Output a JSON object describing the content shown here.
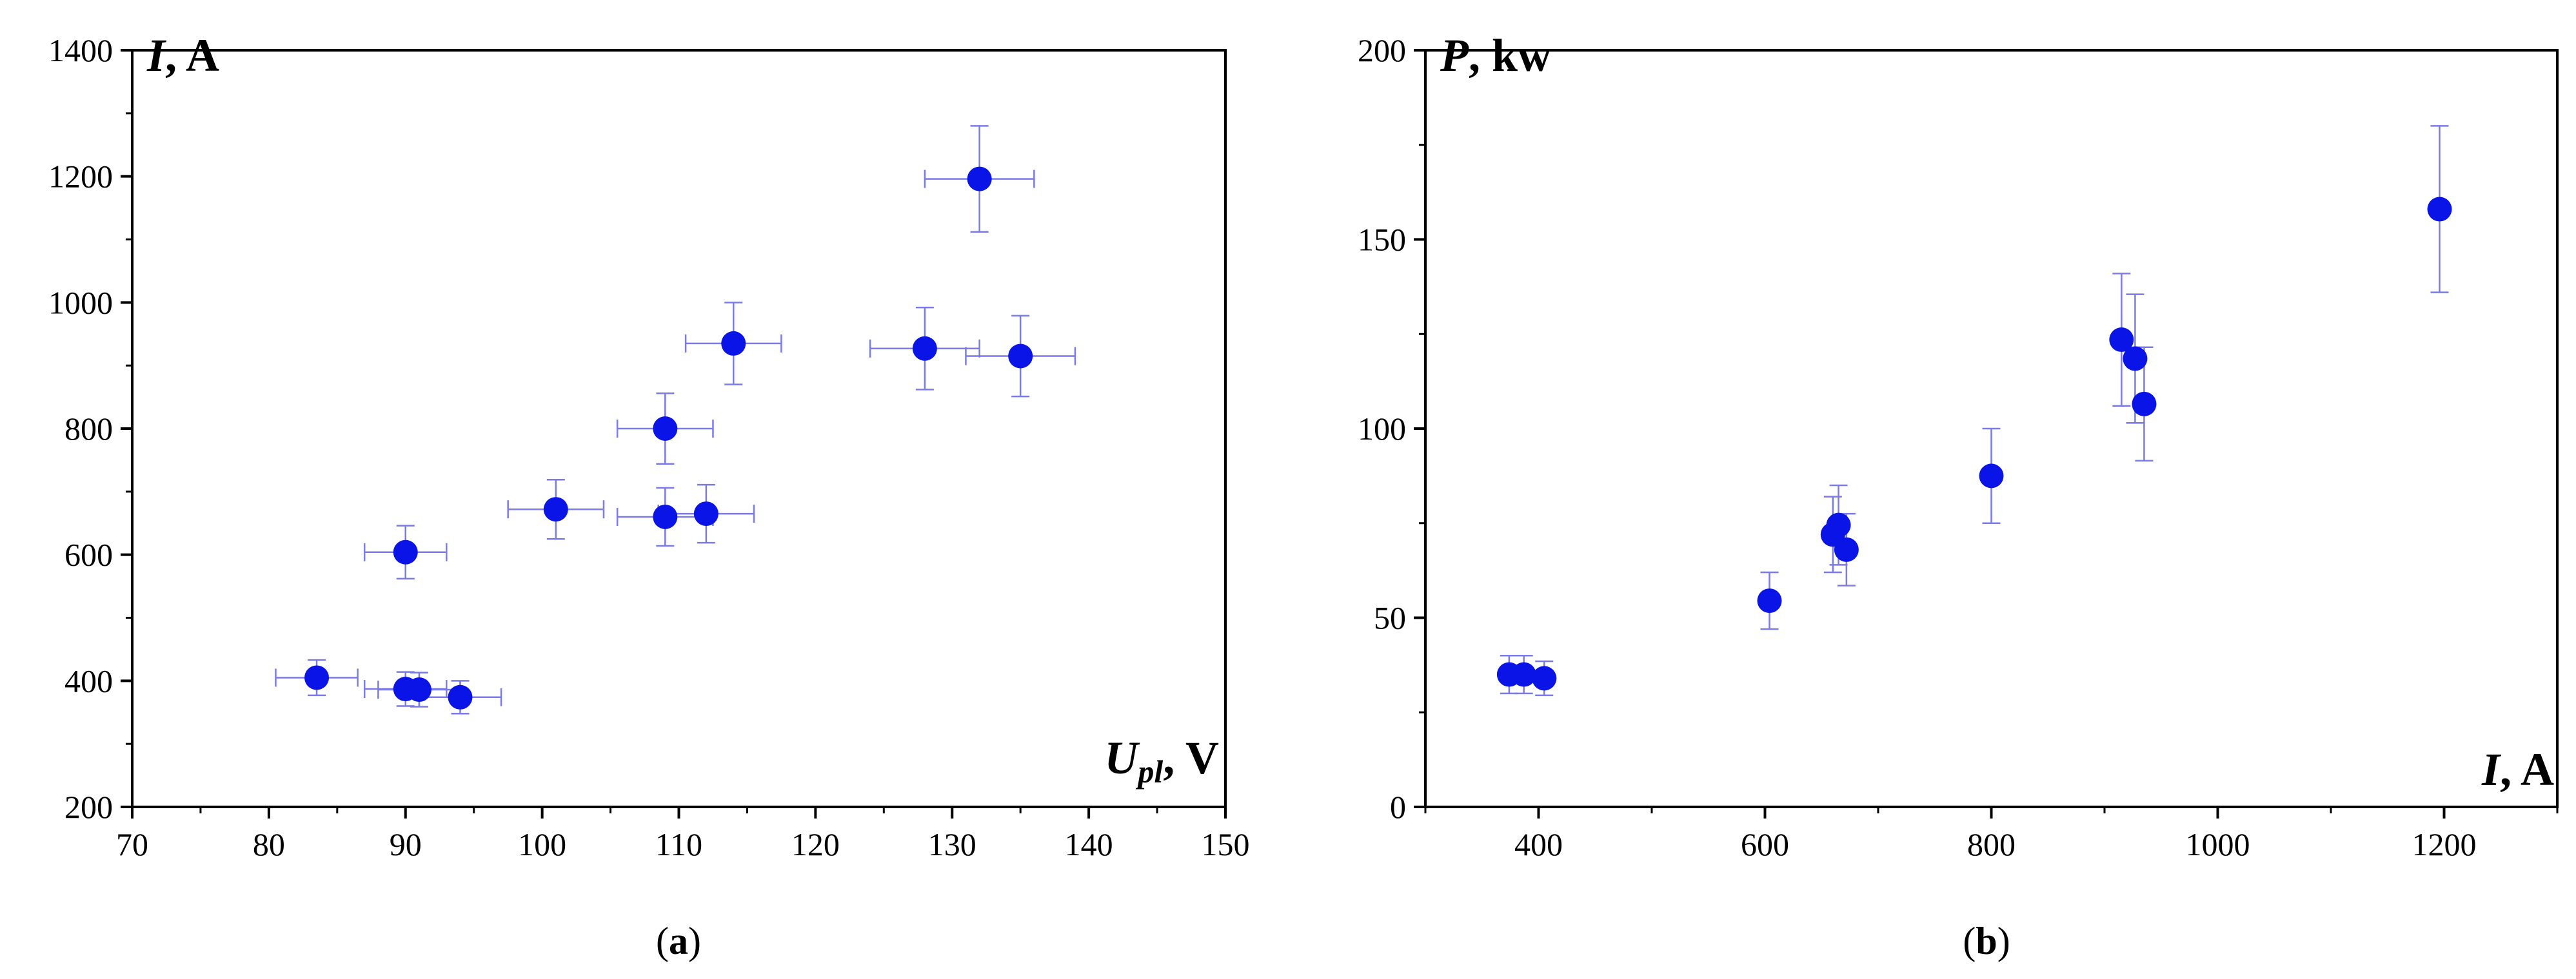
{
  "colors": {
    "marker": "#0a14e6",
    "errorbar": "#7a7ae8",
    "axis": "#000000"
  },
  "chart_data": [
    {
      "type": "scatter",
      "panel_label": "(a)",
      "panel_letter": "a",
      "ylabel_symbol": "I",
      "ylabel_unit": ", A",
      "xlabel_symbol": "U",
      "xlabel_subscript": "pl",
      "xlabel_unit": ", V",
      "xlim": [
        70,
        150
      ],
      "ylim": [
        200,
        1400
      ],
      "xticks": [
        70,
        80,
        90,
        100,
        110,
        120,
        130,
        140,
        150
      ],
      "yticks": [
        200,
        400,
        600,
        800,
        1000,
        1200,
        1400
      ],
      "xtick_labels": [
        "70",
        "80",
        "90",
        "100",
        "110",
        "120",
        "130",
        "140",
        "150"
      ],
      "ytick_labels": [
        "200",
        "400",
        "600",
        "800",
        "1000",
        "1200",
        "1400"
      ],
      "legend": "none",
      "grid": false,
      "points": [
        {
          "x": 83.5,
          "y": 405,
          "xerr": 3,
          "yerr": 28
        },
        {
          "x": 90,
          "y": 387,
          "xerr": 3,
          "yerr": 27
        },
        {
          "x": 91,
          "y": 386,
          "xerr": 3,
          "yerr": 27
        },
        {
          "x": 94,
          "y": 374,
          "xerr": 3,
          "yerr": 26
        },
        {
          "x": 90,
          "y": 604,
          "xerr": 3,
          "yerr": 42
        },
        {
          "x": 101,
          "y": 672,
          "xerr": 3.5,
          "yerr": 47
        },
        {
          "x": 109,
          "y": 660,
          "xerr": 3.5,
          "yerr": 46
        },
        {
          "x": 112,
          "y": 665,
          "xerr": 3.5,
          "yerr": 46
        },
        {
          "x": 109,
          "y": 800,
          "xerr": 3.5,
          "yerr": 56
        },
        {
          "x": 114,
          "y": 935,
          "xerr": 3.5,
          "yerr": 65
        },
        {
          "x": 128,
          "y": 927,
          "xerr": 4,
          "yerr": 65
        },
        {
          "x": 135,
          "y": 915,
          "xerr": 4,
          "yerr": 64
        },
        {
          "x": 132,
          "y": 1196,
          "xerr": 4,
          "yerr": 84
        }
      ]
    },
    {
      "type": "scatter",
      "panel_label": "(b)",
      "panel_letter": "b",
      "ylabel_symbol": "P",
      "ylabel_unit": ", kw",
      "xlabel_symbol": "I",
      "xlabel_subscript": "",
      "xlabel_unit": ", A",
      "xlim": [
        300,
        1300
      ],
      "ylim": [
        0,
        200
      ],
      "xticks": [
        400,
        600,
        800,
        1000,
        1200
      ],
      "yticks": [
        0,
        50,
        100,
        150,
        200
      ],
      "xtick_labels": [
        "400",
        "600",
        "800",
        "1000",
        "1200"
      ],
      "ytick_labels": [
        "0",
        "50",
        "100",
        "150",
        "200"
      ],
      "legend": "none",
      "grid": false,
      "points": [
        {
          "x": 374,
          "y": 35,
          "yerr": 5
        },
        {
          "x": 387,
          "y": 35,
          "yerr": 5
        },
        {
          "x": 405,
          "y": 34,
          "yerr": 4.5
        },
        {
          "x": 604,
          "y": 54.5,
          "yerr": 7.5
        },
        {
          "x": 660,
          "y": 72,
          "yerr": 10
        },
        {
          "x": 665,
          "y": 74.5,
          "yerr": 10.5
        },
        {
          "x": 672,
          "y": 68,
          "yerr": 9.5
        },
        {
          "x": 800,
          "y": 87.5,
          "yerr": 12.5
        },
        {
          "x": 915,
          "y": 123.5,
          "yerr": 17.5
        },
        {
          "x": 927,
          "y": 118.5,
          "yerr": 17
        },
        {
          "x": 935,
          "y": 106.5,
          "yerr": 15
        },
        {
          "x": 1196,
          "y": 158,
          "yerr": 22
        }
      ]
    }
  ]
}
